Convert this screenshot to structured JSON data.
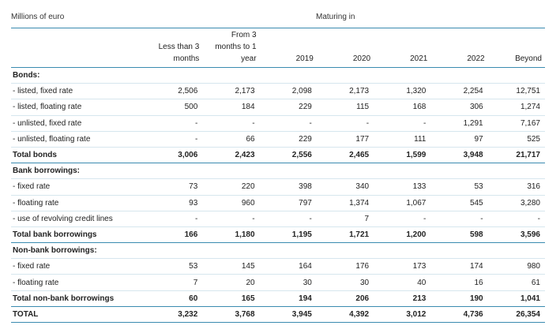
{
  "header": {
    "unit_label": "Millions of euro",
    "group_label": "Maturing in",
    "columns": [
      "Less than 3 months",
      "From 3 months to 1 year",
      "2019",
      "2020",
      "2021",
      "2022",
      "Beyond"
    ]
  },
  "sections": [
    {
      "title": "Bonds:",
      "rows": [
        {
          "label": "- listed, fixed rate",
          "values": [
            "2,506",
            "2,173",
            "2,098",
            "2,173",
            "1,320",
            "2,254",
            "12,751"
          ]
        },
        {
          "label": "- listed, floating rate",
          "values": [
            "500",
            "184",
            "229",
            "115",
            "168",
            "306",
            "1,274"
          ]
        },
        {
          "label": "- unlisted, fixed rate",
          "values": [
            "-",
            "-",
            "-",
            "-",
            "-",
            "1,291",
            "7,167"
          ]
        },
        {
          "label": "- unlisted, floating rate",
          "values": [
            "-",
            "66",
            "229",
            "177",
            "111",
            "97",
            "525"
          ]
        }
      ],
      "total": {
        "label": "Total bonds",
        "values": [
          "3,006",
          "2,423",
          "2,556",
          "2,465",
          "1,599",
          "3,948",
          "21,717"
        ]
      }
    },
    {
      "title": "Bank borrowings:",
      "rows": [
        {
          "label": "- fixed rate",
          "values": [
            "73",
            "220",
            "398",
            "340",
            "133",
            "53",
            "316"
          ]
        },
        {
          "label": "- floating rate",
          "values": [
            "93",
            "960",
            "797",
            "1,374",
            "1,067",
            "545",
            "3,280"
          ]
        },
        {
          "label": "- use of revolving credit lines",
          "values": [
            "-",
            "-",
            "-",
            "7",
            "-",
            "-",
            "-"
          ]
        }
      ],
      "total": {
        "label": "Total bank borrowings",
        "values": [
          "166",
          "1,180",
          "1,195",
          "1,721",
          "1,200",
          "598",
          "3,596"
        ]
      }
    },
    {
      "title": "Non-bank borrowings:",
      "rows": [
        {
          "label": "- fixed rate",
          "values": [
            "53",
            "145",
            "164",
            "176",
            "173",
            "174",
            "980"
          ]
        },
        {
          "label": "- floating rate",
          "values": [
            "7",
            "20",
            "30",
            "30",
            "40",
            "16",
            "61"
          ]
        }
      ],
      "total": {
        "label": "Total non-bank borrowings",
        "values": [
          "60",
          "165",
          "194",
          "206",
          "213",
          "190",
          "1,041"
        ]
      }
    }
  ],
  "grand_total": {
    "label": "TOTAL",
    "values": [
      "3,232",
      "3,768",
      "3,945",
      "4,392",
      "3,012",
      "4,736",
      "26,354"
    ]
  }
}
